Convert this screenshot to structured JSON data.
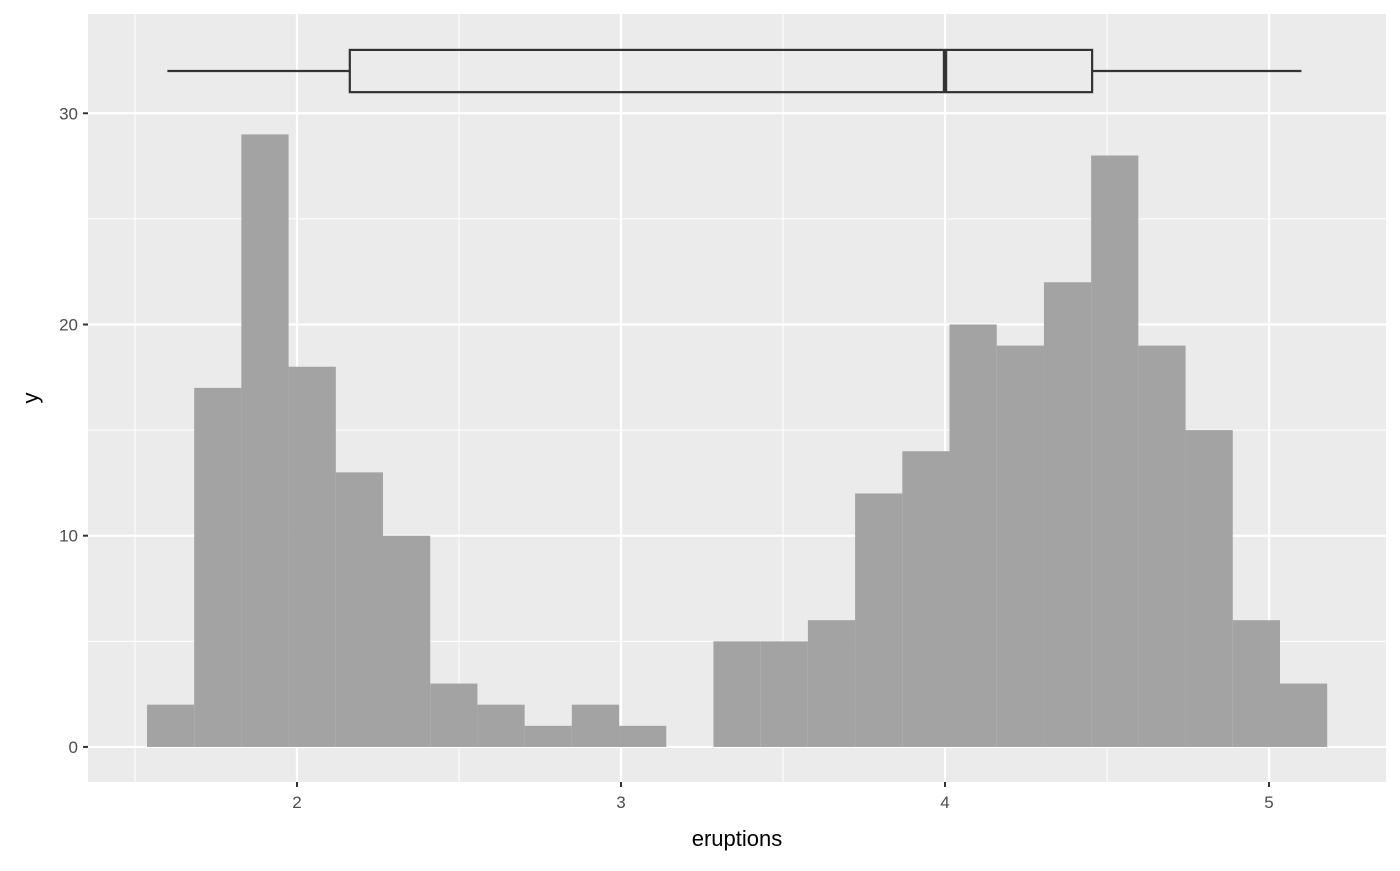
{
  "chart_data": {
    "type": "histogram",
    "xlabel": "eruptions",
    "ylabel": "y",
    "xlim": [
      1.355,
      5.361
    ],
    "ylim": [
      -1.66,
      34.7
    ],
    "grid": true,
    "x_ticks": [
      2,
      3,
      4,
      5
    ],
    "x_tick_labels": [
      "2",
      "3",
      "4",
      "5"
    ],
    "y_ticks": [
      0,
      10,
      20,
      30
    ],
    "y_tick_labels": [
      "0",
      "10",
      "20",
      "30"
    ],
    "bin_start": 1.537,
    "bin_width": 0.1457,
    "counts": [
      2,
      17,
      29,
      18,
      13,
      10,
      3,
      2,
      1,
      2,
      1,
      0,
      5,
      5,
      6,
      12,
      14,
      20,
      19,
      22,
      28,
      19,
      15,
      6,
      3
    ],
    "boxplot": {
      "min": 1.6,
      "q1": 2.163,
      "median": 4.0,
      "q3": 4.454,
      "max": 5.1,
      "y_center": 32,
      "y_low": 31,
      "y_high": 33
    },
    "colors": {
      "panel": "#ebebeb",
      "grid": "#ffffff",
      "bar": "#a3a3a3",
      "box": "#333333"
    }
  }
}
